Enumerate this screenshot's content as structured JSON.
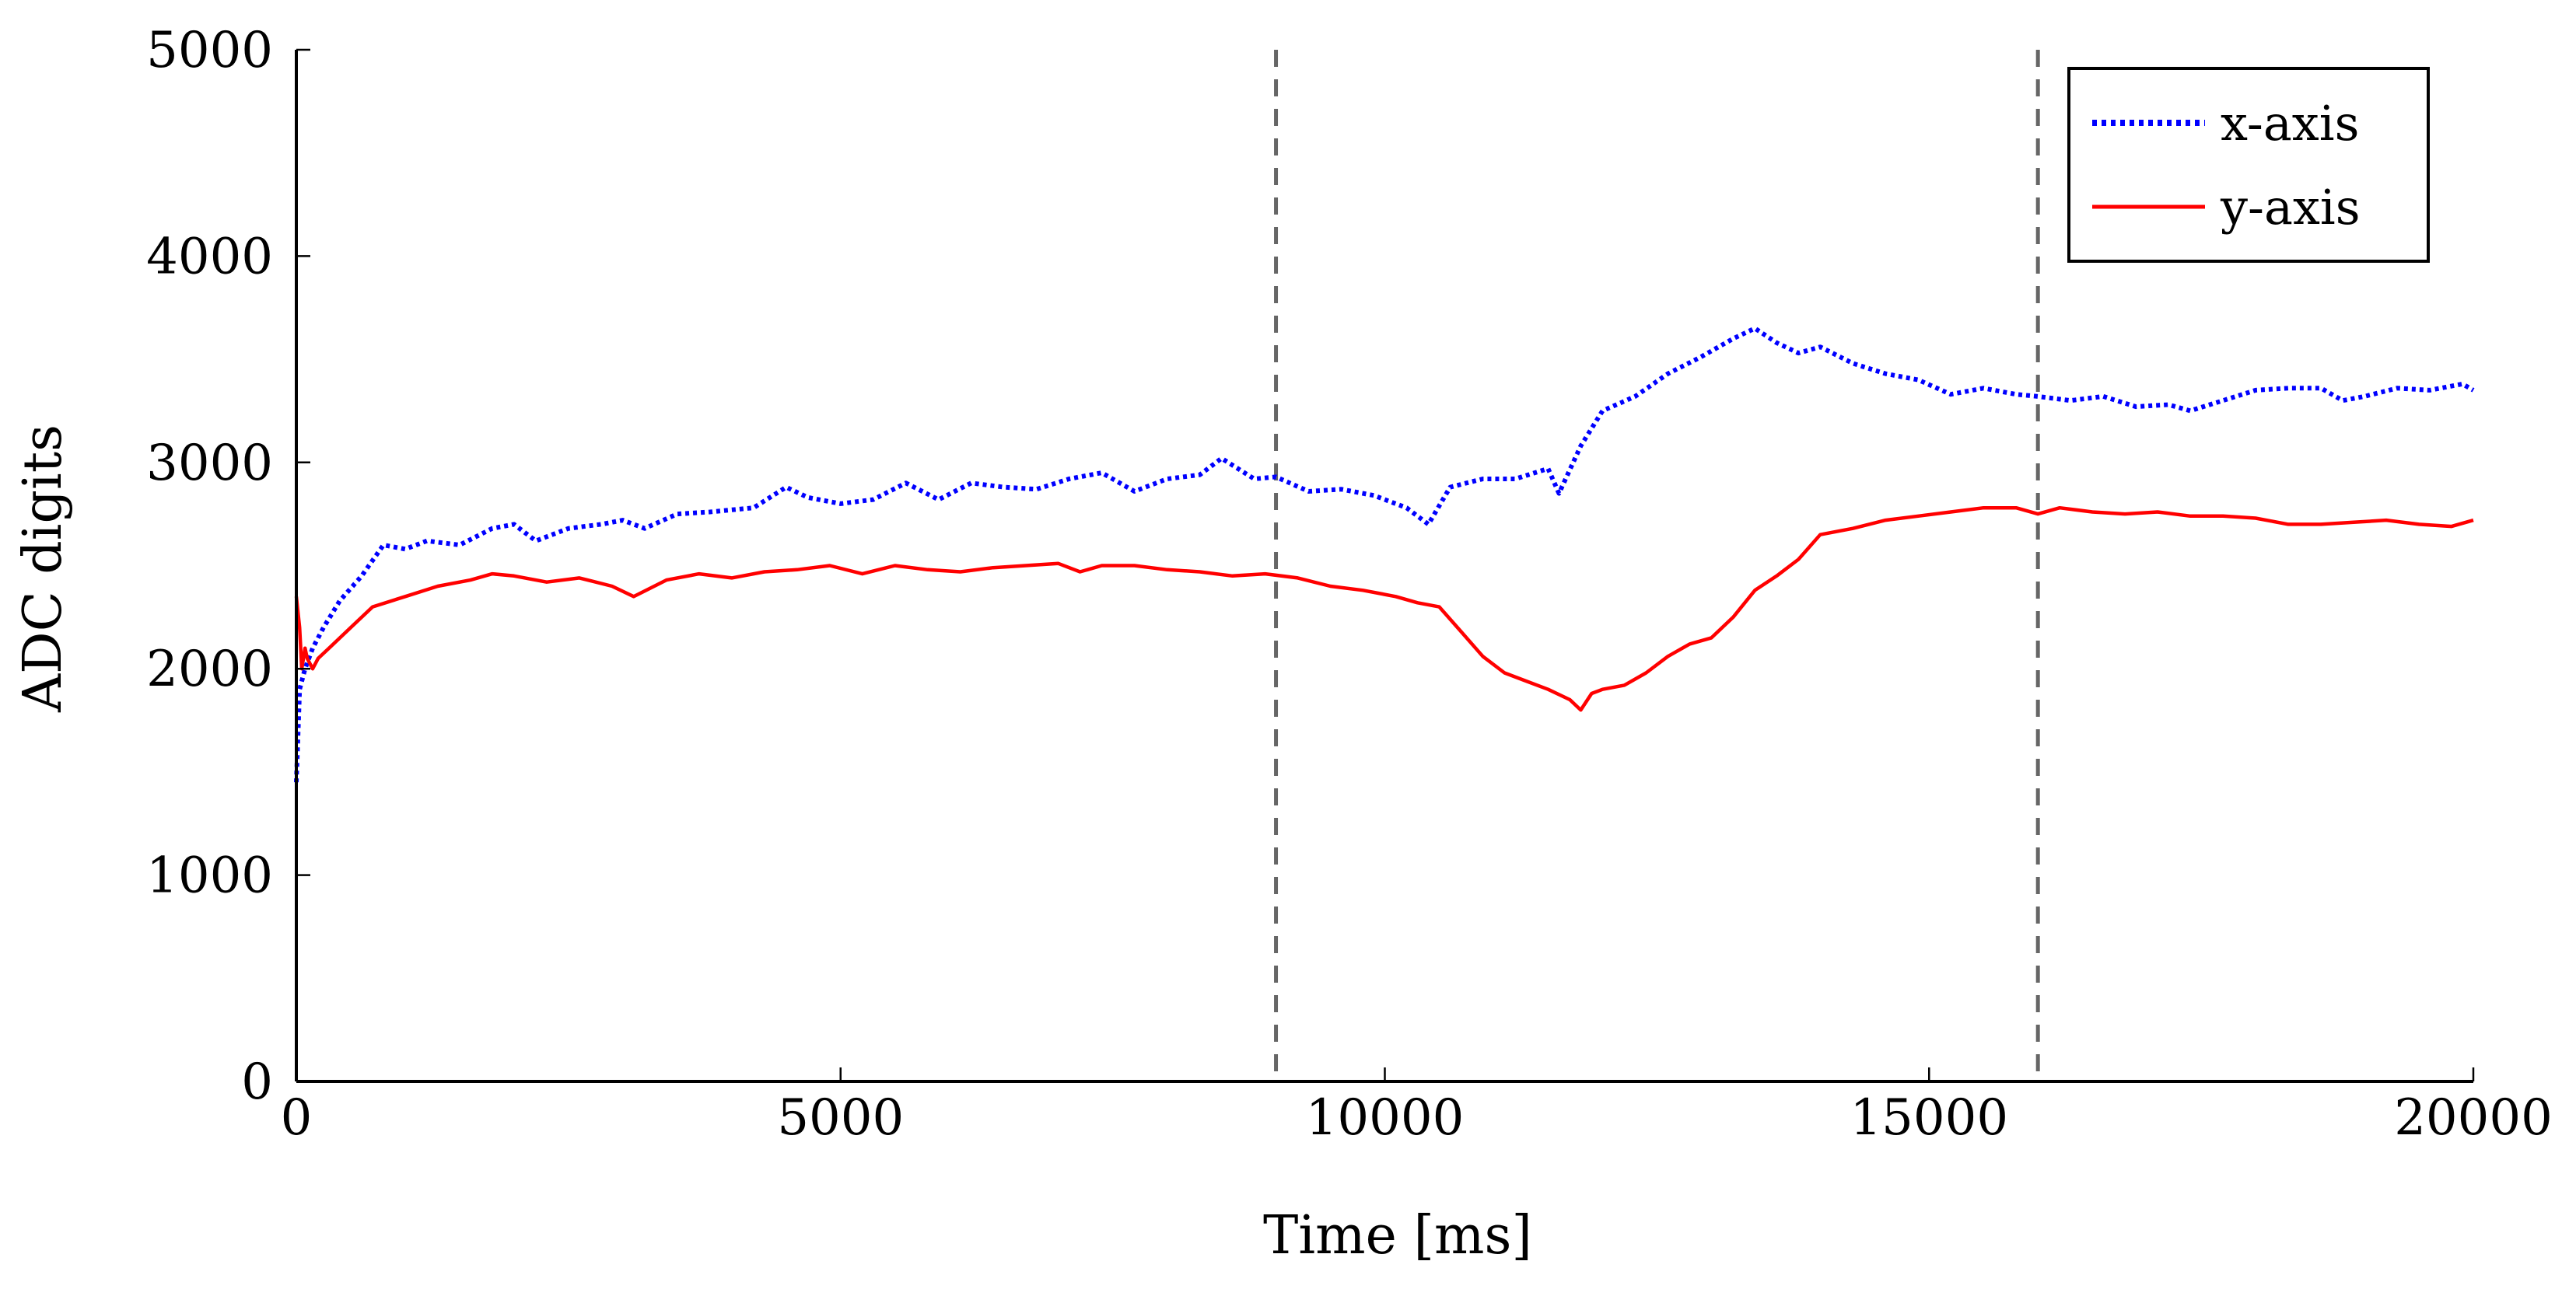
{
  "chart_data": {
    "type": "line",
    "xlabel": "Time [ms]",
    "ylabel": "ADC digits",
    "xlim": [
      0,
      20000
    ],
    "ylim": [
      0,
      5000
    ],
    "xticks": [
      0,
      5000,
      10000,
      15000,
      20000
    ],
    "yticks": [
      0,
      1000,
      2000,
      3000,
      4000,
      5000
    ],
    "xtick_labels": [
      "0",
      "5000",
      "10000",
      "15000",
      "20000"
    ],
    "ytick_labels": [
      "0",
      "1000",
      "2000",
      "3000",
      "4000",
      "5000"
    ],
    "grid": false,
    "legend_position": "top-right",
    "vertical_markers": [
      9000,
      16000
    ],
    "series": [
      {
        "name": "x-axis",
        "color": "#0000ff",
        "style": "dotted",
        "x": [
          0,
          30,
          80,
          150,
          250,
          400,
          600,
          800,
          1000,
          1200,
          1500,
          1800,
          2000,
          2200,
          2500,
          2800,
          3000,
          3200,
          3500,
          3800,
          4000,
          4200,
          4500,
          4700,
          5000,
          5300,
          5600,
          5900,
          6200,
          6500,
          6800,
          7100,
          7400,
          7700,
          8000,
          8300,
          8500,
          8800,
          9000,
          9300,
          9600,
          9900,
          10200,
          10400,
          10600,
          10900,
          11200,
          11500,
          11600,
          11800,
          12000,
          12300,
          12600,
          12900,
          13200,
          13400,
          13600,
          13800,
          14000,
          14300,
          14600,
          14900,
          15200,
          15500,
          15800,
          16000,
          16300,
          16600,
          16900,
          17200,
          17400,
          17700,
          18000,
          18300,
          18600,
          18800,
          19000,
          19300,
          19600,
          19900,
          20000
        ],
        "y": [
          1450,
          1900,
          2000,
          2100,
          2200,
          2330,
          2450,
          2600,
          2580,
          2620,
          2600,
          2680,
          2700,
          2620,
          2680,
          2700,
          2720,
          2680,
          2750,
          2760,
          2770,
          2780,
          2880,
          2830,
          2800,
          2820,
          2900,
          2820,
          2900,
          2880,
          2870,
          2920,
          2950,
          2860,
          2920,
          2940,
          3020,
          2920,
          2930,
          2860,
          2870,
          2840,
          2780,
          2700,
          2880,
          2920,
          2920,
          2970,
          2850,
          3080,
          3250,
          3320,
          3430,
          3510,
          3600,
          3650,
          3580,
          3530,
          3560,
          3480,
          3430,
          3400,
          3330,
          3360,
          3330,
          3320,
          3300,
          3320,
          3270,
          3280,
          3250,
          3300,
          3350,
          3360,
          3360,
          3300,
          3320,
          3360,
          3350,
          3380,
          3350
        ]
      },
      {
        "name": "y-axis",
        "color": "#ff0000",
        "style": "solid",
        "x": [
          0,
          30,
          50,
          80,
          100,
          150,
          200,
          300,
          500,
          700,
          1000,
          1300,
          1600,
          1800,
          2000,
          2300,
          2600,
          2900,
          3100,
          3400,
          3700,
          4000,
          4300,
          4600,
          4900,
          5200,
          5500,
          5800,
          6100,
          6400,
          6700,
          7000,
          7200,
          7400,
          7700,
          8000,
          8300,
          8600,
          8900,
          9200,
          9500,
          9800,
          10100,
          10300,
          10500,
          10700,
          10900,
          11100,
          11300,
          11500,
          11700,
          11800,
          11900,
          12000,
          12200,
          12400,
          12600,
          12800,
          13000,
          13200,
          13400,
          13600,
          13800,
          14000,
          14300,
          14600,
          14900,
          15200,
          15500,
          15800,
          16000,
          16200,
          16500,
          16800,
          17100,
          17400,
          17700,
          18000,
          18300,
          18600,
          18900,
          19200,
          19500,
          19800,
          20000
        ],
        "y": [
          2350,
          2200,
          2000,
          2100,
          2050,
          2000,
          2050,
          2100,
          2200,
          2300,
          2350,
          2400,
          2430,
          2460,
          2450,
          2420,
          2440,
          2400,
          2350,
          2430,
          2460,
          2440,
          2470,
          2480,
          2500,
          2460,
          2500,
          2480,
          2470,
          2490,
          2500,
          2510,
          2470,
          2500,
          2500,
          2480,
          2470,
          2450,
          2460,
          2440,
          2400,
          2380,
          2350,
          2320,
          2300,
          2180,
          2060,
          1980,
          1940,
          1900,
          1850,
          1800,
          1880,
          1900,
          1920,
          1980,
          2060,
          2120,
          2150,
          2250,
          2380,
          2450,
          2530,
          2650,
          2680,
          2720,
          2740,
          2760,
          2780,
          2780,
          2750,
          2780,
          2760,
          2750,
          2760,
          2740,
          2740,
          2730,
          2700,
          2700,
          2710,
          2720,
          2700,
          2690,
          2720
        ]
      }
    ]
  }
}
